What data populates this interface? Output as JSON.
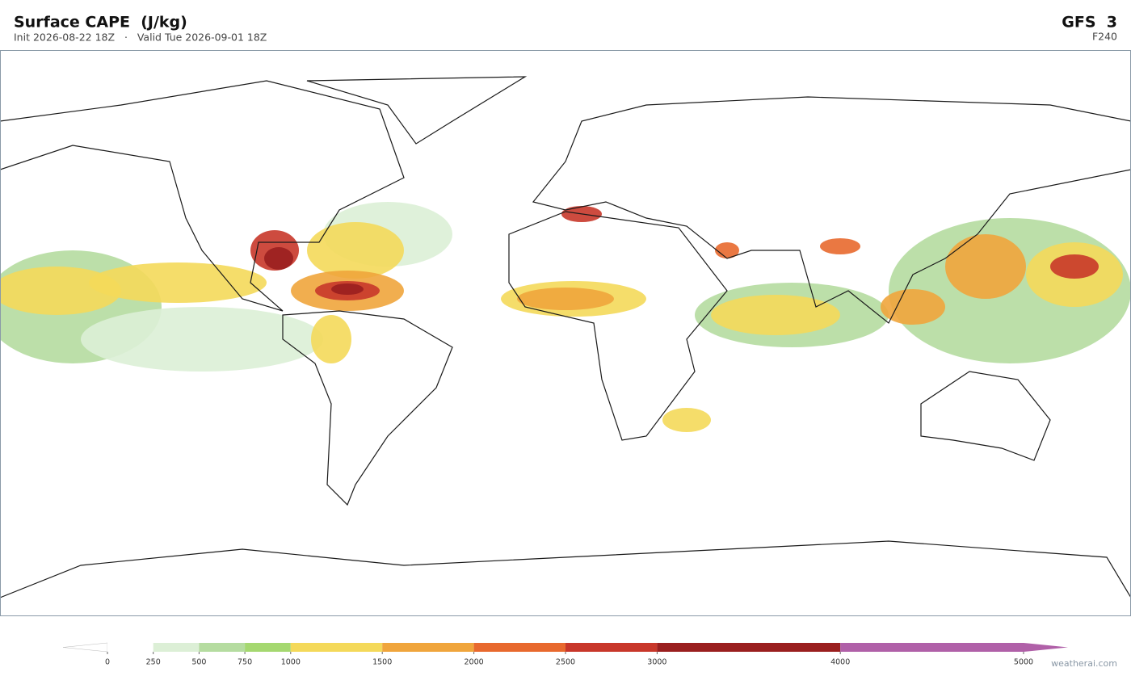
{
  "header": {
    "title": "Surface CAPE  (J/kg)",
    "subtitle": "Init 2026-08-22 18Z   ·   Valid Tue 2026-09-01 18Z",
    "model": "GFS  3",
    "forecast_hour": "F240"
  },
  "colorbar": {
    "ticks": [
      0,
      250,
      500,
      750,
      1000,
      1500,
      2000,
      2500,
      3000,
      4000,
      5000
    ],
    "colors": [
      "#ffffff",
      "#dcefd6",
      "#b5dca0",
      "#a5d870",
      "#f4d95a",
      "#f0a53c",
      "#e8692e",
      "#c8372a",
      "#9a1f1f",
      "#b060a8"
    ],
    "under_color": "#ffffff",
    "over_color": "#b060a8"
  },
  "footer": {
    "credit": "weatherai.com"
  }
}
